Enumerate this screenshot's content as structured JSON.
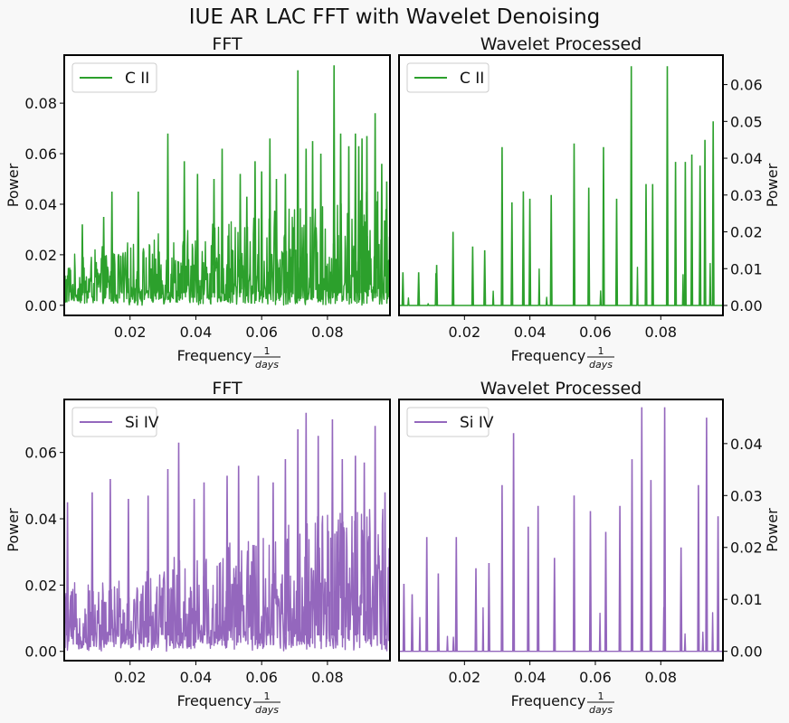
{
  "figure": {
    "title": "IUE AR LAC FFT with Wavelet Denoising"
  },
  "chart_data": [
    {
      "type": "line",
      "title": "FFT",
      "xlabel": "Frequency",
      "xlabel_frac_num": "1",
      "xlabel_frac_den": "days",
      "ylabel": "Power",
      "xlim": [
        0.0,
        0.099
      ],
      "ylim": [
        -0.004,
        0.099
      ],
      "xticks": [
        0.02,
        0.04,
        0.06,
        0.08
      ],
      "xtick_labels": [
        "0.02",
        "0.04",
        "0.06",
        "0.08"
      ],
      "yticks": [
        0.0,
        0.02,
        0.04,
        0.06,
        0.08
      ],
      "ytick_labels": [
        "0.00",
        "0.02",
        "0.04",
        "0.06",
        "0.08"
      ],
      "yaxis_side": "left",
      "legend_position": "upper-left",
      "series": [
        {
          "name": "C II",
          "color": "#2ca02c",
          "x": [
            0.0055,
            0.012,
            0.0145,
            0.0225,
            0.0315,
            0.0365,
            0.0405,
            0.0455,
            0.048,
            0.0535,
            0.0555,
            0.058,
            0.06,
            0.0625,
            0.0645,
            0.0672,
            0.071,
            0.0735,
            0.0755,
            0.078,
            0.082,
            0.084,
            0.0865,
            0.0885,
            0.0895,
            0.0905,
            0.092,
            0.0945,
            0.0965,
            0.098
          ],
          "y": [
            0.032,
            0.035,
            0.045,
            0.045,
            0.068,
            0.057,
            0.052,
            0.05,
            0.062,
            0.052,
            0.043,
            0.057,
            0.053,
            0.066,
            0.05,
            0.052,
            0.093,
            0.062,
            0.065,
            0.06,
            0.095,
            0.068,
            0.063,
            0.068,
            0.063,
            0.066,
            0.067,
            0.076,
            0.056,
            0.049
          ],
          "baseline_level": 0.012
        }
      ]
    },
    {
      "type": "line",
      "title": "Wavelet Processed",
      "xlabel": "Frequency",
      "xlabel_frac_num": "1",
      "xlabel_frac_den": "days",
      "ylabel": "Power",
      "xlim": [
        0.0,
        0.099
      ],
      "ylim": [
        -0.0027,
        0.068
      ],
      "xticks": [
        0.02,
        0.04,
        0.06,
        0.08
      ],
      "xtick_labels": [
        "0.02",
        "0.04",
        "0.06",
        "0.08"
      ],
      "yticks": [
        0.0,
        0.01,
        0.02,
        0.03,
        0.04,
        0.05,
        0.06
      ],
      "ytick_labels": [
        "0.00",
        "0.01",
        "0.02",
        "0.03",
        "0.04",
        "0.05",
        "0.06"
      ],
      "yaxis_side": "right",
      "legend_position": "upper-left",
      "series": [
        {
          "name": "C II",
          "color": "#2ca02c",
          "x": [
            0.0012,
            0.006,
            0.0115,
            0.0165,
            0.0225,
            0.0262,
            0.0315,
            0.0345,
            0.038,
            0.04,
            0.0465,
            0.0535,
            0.058,
            0.0625,
            0.0665,
            0.071,
            0.0755,
            0.0775,
            0.082,
            0.0845,
            0.0875,
            0.0895,
            0.092,
            0.0935,
            0.096
          ],
          "y": [
            0.009,
            0.009,
            0.011,
            0.02,
            0.016,
            0.015,
            0.043,
            0.028,
            0.031,
            0.029,
            0.03,
            0.044,
            0.032,
            0.043,
            0.029,
            0.065,
            0.033,
            0.033,
            0.065,
            0.039,
            0.039,
            0.041,
            0.038,
            0.045,
            0.05
          ],
          "baseline_level": 0.0
        }
      ]
    },
    {
      "type": "line",
      "title": "FFT",
      "xlabel": "Frequency",
      "xlabel_frac_num": "1",
      "xlabel_frac_den": "days",
      "ylabel": "Power",
      "xlim": [
        0.0,
        0.099
      ],
      "ylim": [
        -0.0028,
        0.076
      ],
      "xticks": [
        0.02,
        0.04,
        0.06,
        0.08
      ],
      "xtick_labels": [
        "0.02",
        "0.04",
        "0.06",
        "0.08"
      ],
      "yticks": [
        0.0,
        0.02,
        0.04,
        0.06
      ],
      "ytick_labels": [
        "0.00",
        "0.02",
        "0.04",
        "0.06"
      ],
      "yaxis_side": "left",
      "legend_position": "upper-left",
      "series": [
        {
          "name": "Si IV",
          "color": "#9467bd",
          "x": [
            0.001,
            0.0085,
            0.014,
            0.0195,
            0.0255,
            0.0315,
            0.0348,
            0.0395,
            0.0425,
            0.0495,
            0.053,
            0.059,
            0.0635,
            0.0672,
            0.071,
            0.0735,
            0.0772,
            0.0815,
            0.0845,
            0.0885,
            0.0912,
            0.0945,
            0.0975
          ],
          "y": [
            0.045,
            0.048,
            0.052,
            0.046,
            0.047,
            0.055,
            0.063,
            0.046,
            0.051,
            0.053,
            0.056,
            0.053,
            0.051,
            0.058,
            0.067,
            0.072,
            0.065,
            0.07,
            0.058,
            0.059,
            0.057,
            0.068,
            0.048
          ],
          "baseline_level": 0.012
        }
      ]
    },
    {
      "type": "line",
      "title": "Wavelet Processed",
      "xlabel": "Frequency",
      "xlabel_frac_num": "1",
      "xlabel_frac_den": "days",
      "ylabel": "Power",
      "xlim": [
        0.0,
        0.099
      ],
      "ylim": [
        -0.0018,
        0.0485
      ],
      "xticks": [
        0.02,
        0.04,
        0.06,
        0.08
      ],
      "xtick_labels": [
        "0.02",
        "0.04",
        "0.06",
        "0.08"
      ],
      "yticks": [
        0.0,
        0.01,
        0.02,
        0.03,
        0.04
      ],
      "ytick_labels": [
        "0.00",
        "0.01",
        "0.02",
        "0.03",
        "0.04"
      ],
      "yaxis_side": "right",
      "legend_position": "upper-left",
      "series": [
        {
          "name": "Si IV",
          "color": "#9467bd",
          "x": [
            0.0015,
            0.004,
            0.0085,
            0.012,
            0.0175,
            0.0235,
            0.0275,
            0.0315,
            0.035,
            0.0395,
            0.0425,
            0.0475,
            0.0535,
            0.0585,
            0.0632,
            0.0675,
            0.0712,
            0.0742,
            0.077,
            0.0812,
            0.0862,
            0.0915,
            0.094,
            0.0975
          ],
          "y": [
            0.013,
            0.011,
            0.022,
            0.015,
            0.022,
            0.016,
            0.017,
            0.032,
            0.042,
            0.024,
            0.028,
            0.018,
            0.03,
            0.027,
            0.023,
            0.028,
            0.037,
            0.047,
            0.033,
            0.047,
            0.02,
            0.032,
            0.045,
            0.026
          ],
          "baseline_level": 0.0
        }
      ]
    }
  ]
}
